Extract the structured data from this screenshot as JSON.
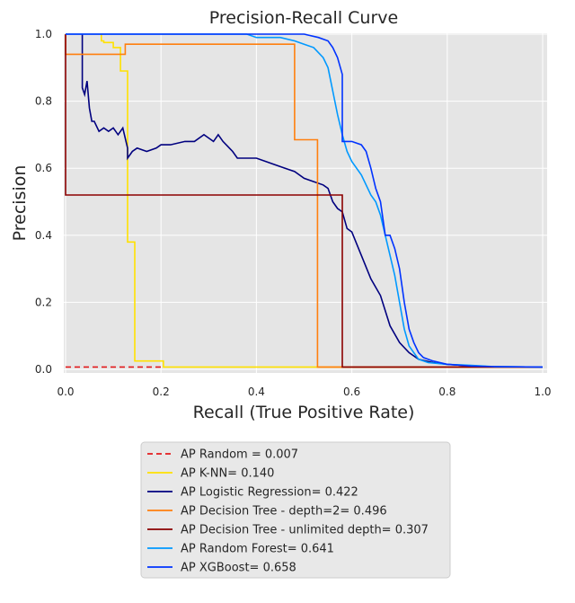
{
  "chart_data": {
    "type": "line",
    "title": "Precision-Recall Curve",
    "xlabel": "Recall (True Positive Rate)",
    "ylabel": "Precision",
    "xlim": [
      0.0,
      1.0
    ],
    "ylim": [
      0.0,
      1.0
    ],
    "x_ticks": [
      "0.0",
      "0.2",
      "0.4",
      "0.6",
      "0.8",
      "1.0"
    ],
    "y_ticks": [
      "0.0",
      "0.2",
      "0.4",
      "0.6",
      "0.8",
      "1.0"
    ],
    "grid": true,
    "legend_position": "below plot",
    "series": [
      {
        "name": "AP Random = 0.007",
        "color": "#e31a1c",
        "dashed": true,
        "x": [
          0.0,
          0.2
        ],
        "y": [
          0.007,
          0.007
        ]
      },
      {
        "name": "AP K-NN= 0.140",
        "color": "#ffe100",
        "x": [
          0.075,
          0.075,
          0.08,
          0.08,
          0.1,
          0.1,
          0.115,
          0.115,
          0.13,
          0.13,
          0.145,
          0.145,
          0.205,
          0.205,
          1.0
        ],
        "y": [
          1.0,
          0.98,
          0.98,
          0.975,
          0.975,
          0.96,
          0.96,
          0.89,
          0.89,
          0.38,
          0.38,
          0.025,
          0.025,
          0.007,
          0.007
        ]
      },
      {
        "name": "AP Logistic Regression= 0.422",
        "color": "#00007f",
        "x": [
          0.035,
          0.035,
          0.04,
          0.045,
          0.05,
          0.055,
          0.06,
          0.07,
          0.08,
          0.09,
          0.1,
          0.11,
          0.12,
          0.13,
          0.13,
          0.14,
          0.15,
          0.17,
          0.19,
          0.2,
          0.22,
          0.25,
          0.27,
          0.29,
          0.3,
          0.31,
          0.32,
          0.33,
          0.35,
          0.36,
          0.38,
          0.4,
          0.42,
          0.44,
          0.46,
          0.48,
          0.5,
          0.52,
          0.54,
          0.55,
          0.56,
          0.57,
          0.58,
          0.59,
          0.6,
          0.62,
          0.64,
          0.66,
          0.68,
          0.7,
          0.72,
          0.74,
          0.77,
          0.8,
          0.85,
          0.9,
          1.0
        ],
        "y": [
          1.0,
          0.84,
          0.82,
          0.86,
          0.78,
          0.74,
          0.74,
          0.71,
          0.72,
          0.71,
          0.72,
          0.7,
          0.72,
          0.66,
          0.63,
          0.65,
          0.66,
          0.65,
          0.66,
          0.67,
          0.67,
          0.68,
          0.68,
          0.7,
          0.69,
          0.68,
          0.7,
          0.68,
          0.65,
          0.63,
          0.63,
          0.63,
          0.62,
          0.61,
          0.6,
          0.59,
          0.57,
          0.56,
          0.55,
          0.54,
          0.5,
          0.48,
          0.47,
          0.42,
          0.41,
          0.34,
          0.27,
          0.22,
          0.13,
          0.08,
          0.05,
          0.03,
          0.02,
          0.015,
          0.01,
          0.008,
          0.007
        ]
      },
      {
        "name": "AP Decision Tree - depth=2= 0.496",
        "color": "#ff7f0e",
        "x": [
          0.0,
          0.0,
          0.125,
          0.125,
          0.48,
          0.48,
          0.528,
          0.528,
          1.0
        ],
        "y": [
          1.0,
          0.94,
          0.94,
          0.97,
          0.97,
          0.685,
          0.685,
          0.007,
          0.007
        ]
      },
      {
        "name": "AP Decision Tree - unlimited depth= 0.307",
        "color": "#8b0000",
        "x": [
          0.0,
          0.0,
          0.58,
          0.58,
          1.0
        ],
        "y": [
          1.0,
          0.52,
          0.52,
          0.007,
          0.007
        ]
      },
      {
        "name": "AP Random Forest= 0.641",
        "color": "#0099ff",
        "x": [
          0.0,
          0.38,
          0.4,
          0.45,
          0.48,
          0.5,
          0.52,
          0.54,
          0.55,
          0.56,
          0.57,
          0.58,
          0.59,
          0.6,
          0.61,
          0.62,
          0.63,
          0.64,
          0.65,
          0.66,
          0.67,
          0.68,
          0.69,
          0.7,
          0.71,
          0.72,
          0.73,
          0.74,
          0.76,
          0.8,
          0.85,
          0.9,
          1.0
        ],
        "y": [
          1.0,
          1.0,
          0.99,
          0.99,
          0.98,
          0.97,
          0.96,
          0.93,
          0.9,
          0.83,
          0.76,
          0.7,
          0.65,
          0.62,
          0.6,
          0.58,
          0.55,
          0.52,
          0.5,
          0.46,
          0.4,
          0.34,
          0.28,
          0.2,
          0.12,
          0.07,
          0.05,
          0.03,
          0.02,
          0.015,
          0.012,
          0.008,
          0.007
        ]
      },
      {
        "name": "AP XGBoost= 0.658",
        "color": "#0033ff",
        "x": [
          0.0,
          0.45,
          0.5,
          0.53,
          0.55,
          0.56,
          0.57,
          0.58,
          0.58,
          0.6,
          0.62,
          0.63,
          0.64,
          0.65,
          0.66,
          0.67,
          0.68,
          0.69,
          0.7,
          0.71,
          0.72,
          0.73,
          0.74,
          0.75,
          0.77,
          0.8,
          0.85,
          0.9,
          1.0
        ],
        "y": [
          1.0,
          1.0,
          1.0,
          0.99,
          0.98,
          0.96,
          0.93,
          0.88,
          0.68,
          0.68,
          0.67,
          0.65,
          0.6,
          0.54,
          0.5,
          0.4,
          0.4,
          0.36,
          0.3,
          0.2,
          0.12,
          0.08,
          0.05,
          0.035,
          0.025,
          0.015,
          0.01,
          0.008,
          0.007
        ]
      }
    ]
  }
}
